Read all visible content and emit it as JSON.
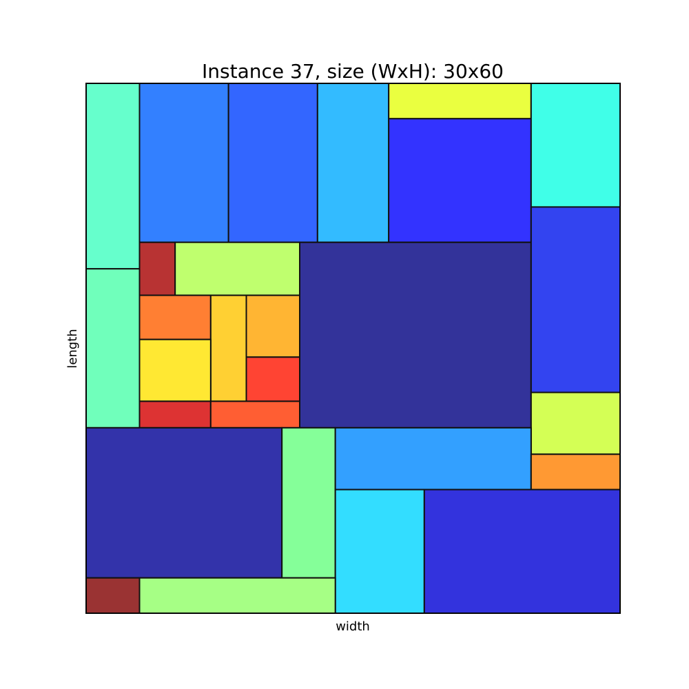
{
  "chart_data": {
    "type": "rectangle-packing",
    "title": "Instance 37, size (WxH): 30x60",
    "xlabel": "width",
    "ylabel": "length",
    "container": {
      "width": 30,
      "height": 60
    },
    "axes_visible": false,
    "rectangles": [
      {
        "x": 0,
        "y": 39,
        "w": 3,
        "h": 21,
        "color": "#66FFCC"
      },
      {
        "x": 3,
        "y": 42,
        "w": 5,
        "h": 18,
        "color": "#3380FF"
      },
      {
        "x": 8,
        "y": 42,
        "w": 5,
        "h": 18,
        "color": "#3366FF"
      },
      {
        "x": 13,
        "y": 42,
        "w": 4,
        "h": 18,
        "color": "#33BBFF"
      },
      {
        "x": 17,
        "y": 56,
        "w": 8,
        "h": 4,
        "color": "#EAFF40"
      },
      {
        "x": 17,
        "y": 42,
        "w": 8,
        "h": 14,
        "color": "#3333FF"
      },
      {
        "x": 25,
        "y": 46,
        "w": 5,
        "h": 14,
        "color": "#40FFE8"
      },
      {
        "x": 0,
        "y": 21,
        "w": 3,
        "h": 18,
        "color": "#70FFBB"
      },
      {
        "x": 3,
        "y": 36,
        "w": 2,
        "h": 6,
        "color": "#B83333"
      },
      {
        "x": 5,
        "y": 36,
        "w": 7,
        "h": 6,
        "color": "#BFFF6E"
      },
      {
        "x": 12,
        "y": 21,
        "w": 13,
        "h": 21,
        "color": "#33339A"
      },
      {
        "x": 25,
        "y": 25,
        "w": 5,
        "h": 21,
        "color": "#3344F0"
      },
      {
        "x": 3,
        "y": 31,
        "w": 4,
        "h": 5,
        "color": "#FF7F33"
      },
      {
        "x": 7,
        "y": 24,
        "w": 2,
        "h": 12,
        "color": "#FFD033"
      },
      {
        "x": 9,
        "y": 29,
        "w": 3,
        "h": 7,
        "color": "#FFB533"
      },
      {
        "x": 3,
        "y": 24,
        "w": 4,
        "h": 7,
        "color": "#FFE833"
      },
      {
        "x": 9,
        "y": 24,
        "w": 3,
        "h": 5,
        "color": "#FF4433"
      },
      {
        "x": 3,
        "y": 21,
        "w": 4,
        "h": 3,
        "color": "#DD3333"
      },
      {
        "x": 7,
        "y": 21,
        "w": 5,
        "h": 3,
        "color": "#FF5E33"
      },
      {
        "x": 25,
        "y": 18,
        "w": 5,
        "h": 7,
        "color": "#D4FF55"
      },
      {
        "x": 0,
        "y": 4,
        "w": 11,
        "h": 17,
        "color": "#3333AA"
      },
      {
        "x": 11,
        "y": 4,
        "w": 3,
        "h": 17,
        "color": "#85FF99"
      },
      {
        "x": 14,
        "y": 14,
        "w": 11,
        "h": 7,
        "color": "#33A0FF"
      },
      {
        "x": 25,
        "y": 14,
        "w": 5,
        "h": 4,
        "color": "#FF9933"
      },
      {
        "x": 14,
        "y": 0,
        "w": 5,
        "h": 14,
        "color": "#33DDFF"
      },
      {
        "x": 19,
        "y": 0,
        "w": 11,
        "h": 14,
        "color": "#3333DD"
      },
      {
        "x": 0,
        "y": 0,
        "w": 3,
        "h": 4,
        "color": "#9A3333"
      },
      {
        "x": 3,
        "y": 0,
        "w": 11,
        "h": 4,
        "color": "#A6FF85"
      }
    ]
  }
}
